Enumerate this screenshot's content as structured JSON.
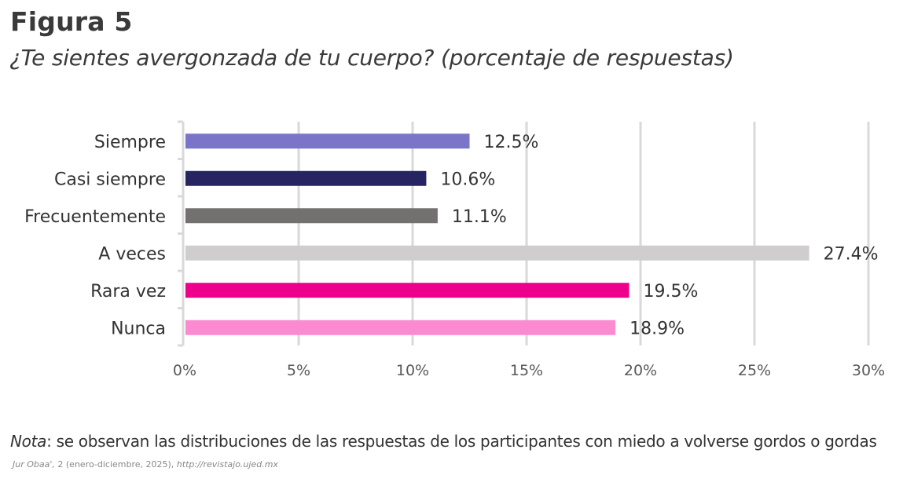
{
  "figure": {
    "label": "Figura 5",
    "title": "¿Te sientes avergonzada de tu cuerpo? (porcentaje de respuestas)"
  },
  "note": {
    "lead": "Nota",
    "text": ": se observan las distribuciones de las respuestas de los participantes con miedo a volverse gordos o gordas"
  },
  "source": {
    "journal": "Jur Obaa',",
    "details": " 2 (enero-diciembre, 2025), ",
    "url": "http://revistajo.ujed.mx"
  },
  "chart_data": {
    "type": "bar",
    "orientation": "horizontal",
    "title": "¿Te sientes avergonzada de tu cuerpo? (porcentaje de respuestas)",
    "xlabel": "",
    "ylabel": "",
    "categories": [
      "Siempre",
      "Casi siempre",
      "Frecuentemente",
      "A veces",
      "Rara vez",
      "Nunca"
    ],
    "values": [
      12.5,
      10.6,
      11.1,
      27.4,
      19.5,
      18.9
    ],
    "value_labels": [
      "12.5%",
      "10.6%",
      "11.1%",
      "27.4%",
      "19.5%",
      "18.9%"
    ],
    "colors": [
      "#7b75c9",
      "#272462",
      "#737070",
      "#cfcdce",
      "#ec008c",
      "#fb8bd0"
    ],
    "xlim": [
      0,
      30
    ],
    "x_ticks": [
      0,
      5,
      10,
      15,
      20,
      25,
      30
    ],
    "x_tick_labels": [
      "0%",
      "5%",
      "10%",
      "15%",
      "20%",
      "25%",
      "30%"
    ],
    "grid": "vertical",
    "legend": "none"
  }
}
